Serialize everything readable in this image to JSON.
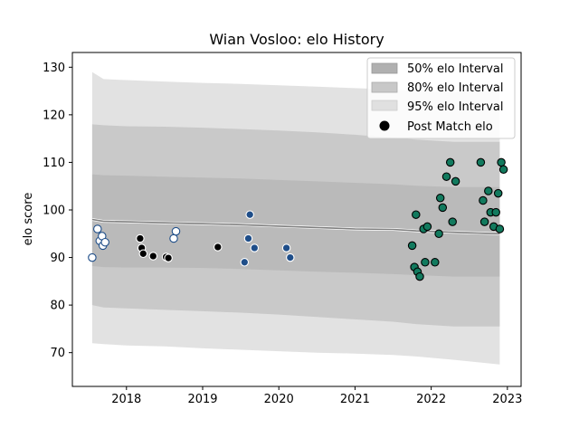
{
  "chart_data": {
    "type": "scatter",
    "title": "Wian Vosloo: elo History",
    "xlabel": "",
    "ylabel": "elo score",
    "xlim": [
      2017.29,
      2023.18
    ],
    "ylim": [
      62.9,
      133.1
    ],
    "x_ticks": [
      2018,
      2019,
      2020,
      2021,
      2022,
      2023
    ],
    "y_ticks": [
      70,
      80,
      90,
      100,
      110,
      120,
      130
    ],
    "grid": false,
    "legend": {
      "placement": "top-right",
      "entries": [
        "50% elo Interval",
        "80% elo Interval",
        "95% elo Interval",
        "Post Match elo"
      ]
    },
    "colors": {
      "band50": "#b0b0b0",
      "band80": "#c8c8c8",
      "band95": "#e0e0e0",
      "mean_line": "#808080",
      "team_white": "#ffffff",
      "team_black": "#000000",
      "team_blue": "#1f4e89",
      "team_green": "#127a5e"
    },
    "intervals": {
      "x": [
        2017.55,
        2017.7,
        2018.0,
        2018.5,
        2019.0,
        2019.5,
        2020.0,
        2020.5,
        2021.0,
        2021.5,
        2021.8,
        2022.3,
        2022.9
      ],
      "mean": [
        98.0,
        97.6,
        97.5,
        97.3,
        97.1,
        96.9,
        96.6,
        96.3,
        96.0,
        95.9,
        95.6,
        95.3,
        95.0
      ],
      "p50_low": [
        88.2,
        88.0,
        87.9,
        87.9,
        87.8,
        87.6,
        87.3,
        87.0,
        86.8,
        86.5,
        86.3,
        86.0,
        86.0
      ],
      "p50_high": [
        107.5,
        107.3,
        107.2,
        107.0,
        106.8,
        106.6,
        106.3,
        106.0,
        105.7,
        105.4,
        105.1,
        104.8,
        104.8
      ],
      "p80_low": [
        80.0,
        79.5,
        79.3,
        79.0,
        78.7,
        78.4,
        78.0,
        77.5,
        77.0,
        76.5,
        76.0,
        75.5,
        75.5
      ],
      "p80_high": [
        118.0,
        117.8,
        117.6,
        117.5,
        117.3,
        117.0,
        116.7,
        116.3,
        115.8,
        115.2,
        114.8,
        114.3,
        114.3
      ],
      "p95_low": [
        72.0,
        71.8,
        71.5,
        71.3,
        70.9,
        70.6,
        70.3,
        70.0,
        69.8,
        69.5,
        69.2,
        68.5,
        67.5
      ],
      "p95_high": [
        129.0,
        127.5,
        127.3,
        127.0,
        126.7,
        126.5,
        126.2,
        125.9,
        125.6,
        125.3,
        125.0,
        124.8,
        125.0
      ]
    },
    "series": [
      {
        "color": "white",
        "points": [
          [
            2017.55,
            90.0
          ],
          [
            2017.62,
            96.0
          ],
          [
            2017.65,
            93.5
          ],
          [
            2017.68,
            94.5
          ],
          [
            2017.69,
            92.5
          ],
          [
            2017.72,
            93.2
          ],
          [
            2018.62,
            94.0
          ],
          [
            2018.65,
            95.5
          ]
        ]
      },
      {
        "color": "black",
        "points": [
          [
            2018.18,
            94.0
          ],
          [
            2018.2,
            92.0
          ],
          [
            2018.22,
            90.8
          ],
          [
            2018.35,
            90.3
          ],
          [
            2018.52,
            90.1
          ],
          [
            2018.55,
            89.9
          ],
          [
            2019.2,
            92.2
          ]
        ]
      },
      {
        "color": "blue",
        "points": [
          [
            2019.55,
            89.0
          ],
          [
            2019.6,
            94.0
          ],
          [
            2019.62,
            99.0
          ],
          [
            2019.68,
            92.0
          ],
          [
            2020.1,
            92.0
          ],
          [
            2020.15,
            90.0
          ]
        ]
      },
      {
        "color": "green",
        "points": [
          [
            2021.75,
            92.5
          ],
          [
            2021.78,
            88.0
          ],
          [
            2021.8,
            99.0
          ],
          [
            2021.82,
            87.0
          ],
          [
            2021.85,
            86.0
          ],
          [
            2021.9,
            96.0
          ],
          [
            2021.92,
            89.0
          ],
          [
            2021.95,
            96.5
          ],
          [
            2022.05,
            89.0
          ],
          [
            2022.1,
            95.0
          ],
          [
            2022.12,
            102.5
          ],
          [
            2022.15,
            100.5
          ],
          [
            2022.2,
            107.0
          ],
          [
            2022.25,
            110.0
          ],
          [
            2022.28,
            97.5
          ],
          [
            2022.32,
            106.0
          ],
          [
            2022.65,
            110.0
          ],
          [
            2022.68,
            102.0
          ],
          [
            2022.7,
            97.5
          ],
          [
            2022.75,
            104.0
          ],
          [
            2022.78,
            99.5
          ],
          [
            2022.82,
            96.5
          ],
          [
            2022.85,
            99.5
          ],
          [
            2022.88,
            103.5
          ],
          [
            2022.9,
            96.0
          ],
          [
            2022.92,
            110.0
          ],
          [
            2022.95,
            108.5
          ]
        ]
      }
    ]
  }
}
